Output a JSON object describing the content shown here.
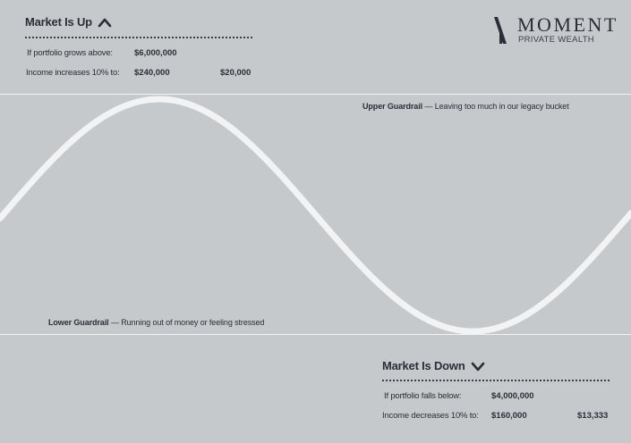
{
  "logo": {
    "word": "MOMENT",
    "sub": "PRIVATE WEALTH"
  },
  "up": {
    "title": "Market Is Up",
    "icon": "chevron-up-icon",
    "threshold_label": "If portfolio grows above:",
    "threshold_value": "$6,000,000",
    "income_label": "Income increases 10% to:",
    "income_annual": "$240,000",
    "income_monthly": "$20,000"
  },
  "down": {
    "title": "Market Is Down",
    "icon": "chevron-down-icon",
    "threshold_label": "If portfolio falls below:",
    "threshold_value": "$4,000,000",
    "income_label": "Income decreases 10% to:",
    "income_annual": "$160,000",
    "income_monthly": "$13,333"
  },
  "upper_guardrail": {
    "name": "Upper Guardrail",
    "desc": "— Leaving too much in our legacy bucket"
  },
  "lower_guardrail": {
    "name": "Lower Guardrail",
    "desc": "— Running out of money or feeling stressed"
  },
  "colors": {
    "background": "#c6c9cb",
    "text": "#2a2e36",
    "curve": "#f2f3f4"
  }
}
